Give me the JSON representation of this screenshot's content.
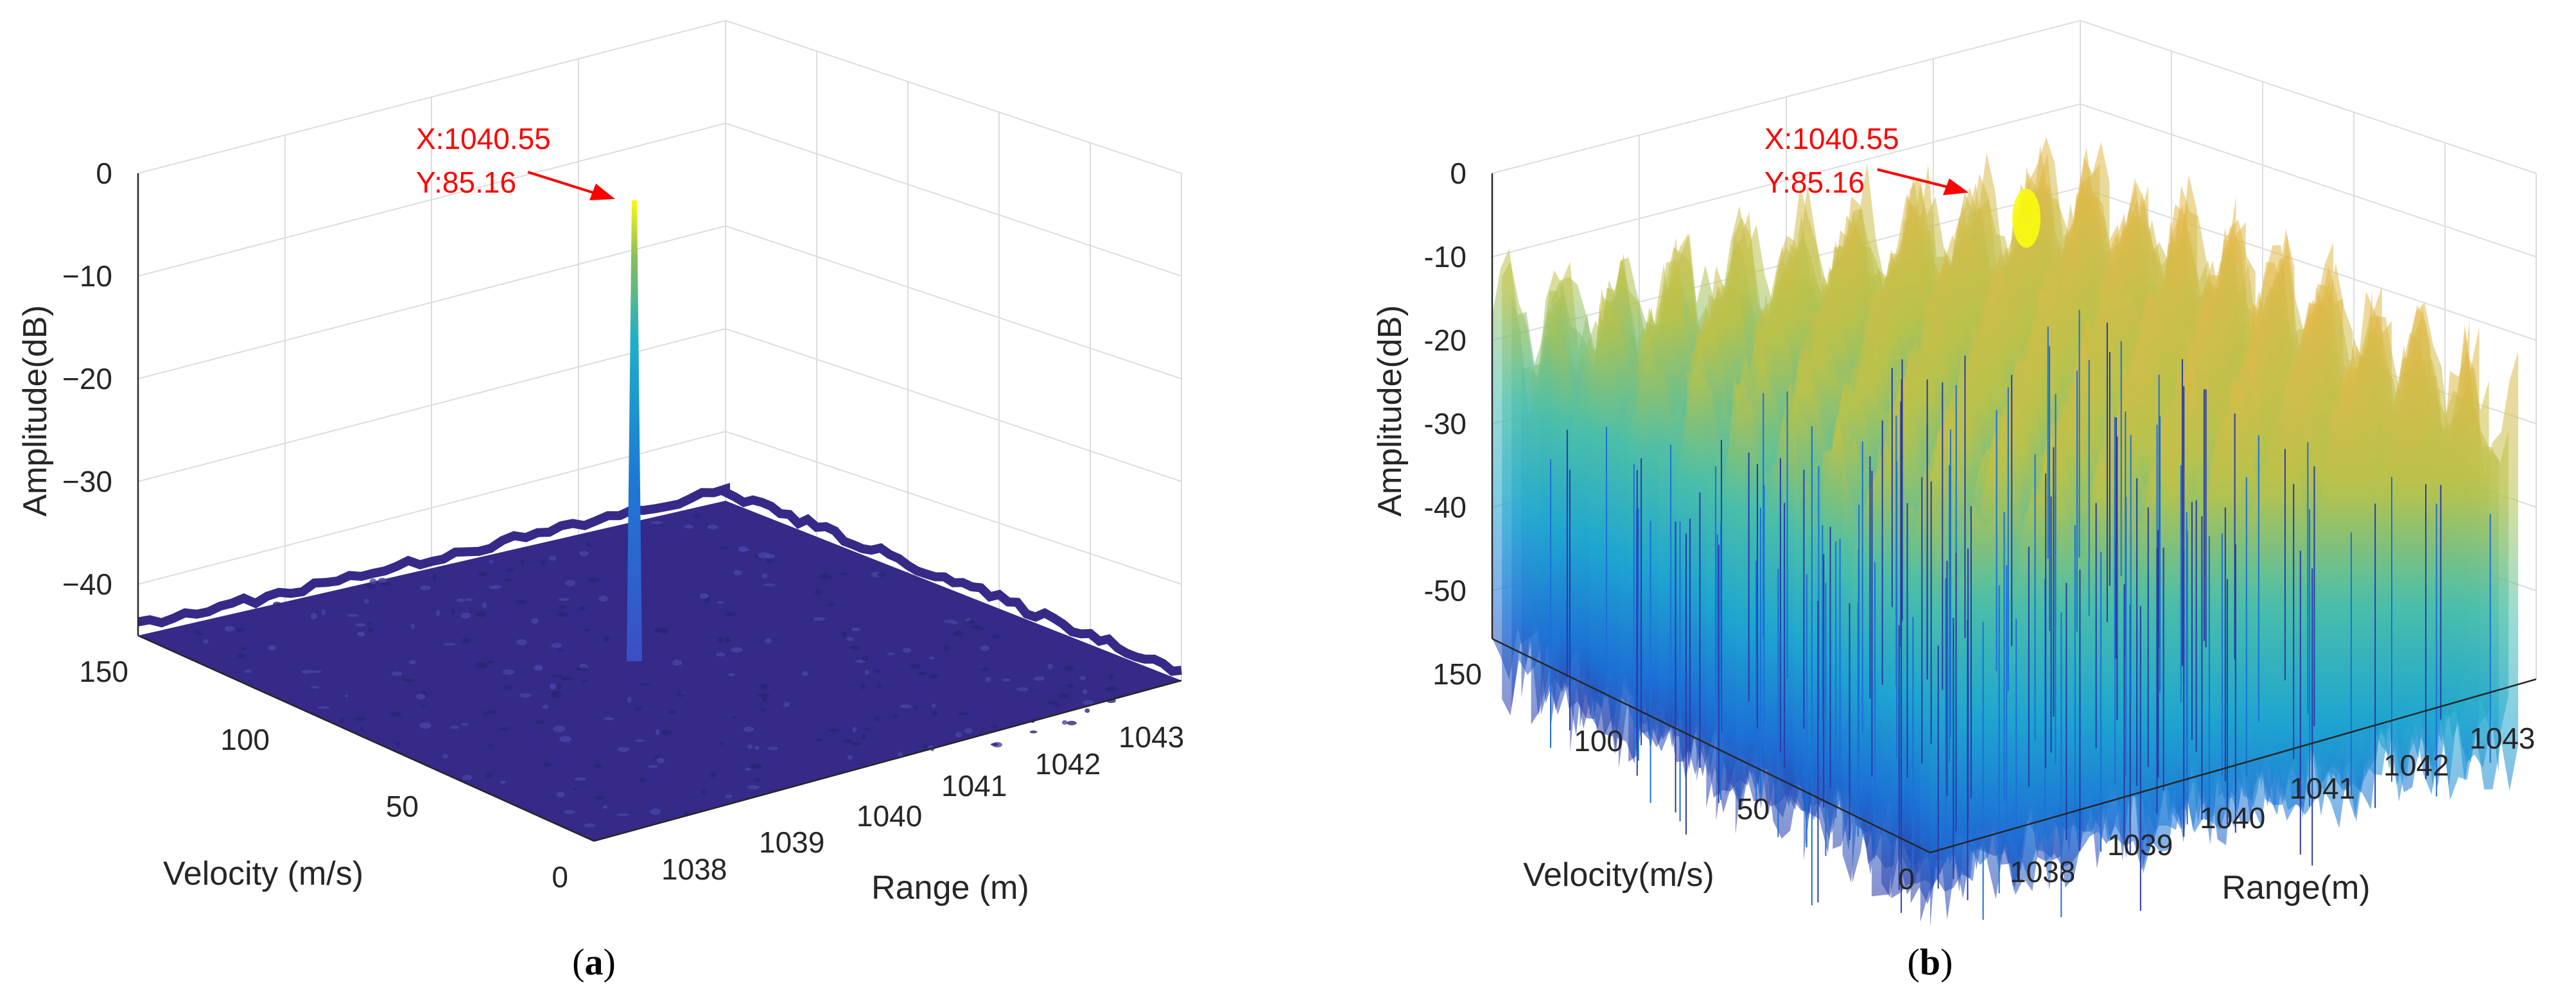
{
  "chart_data": [
    {
      "id": "a",
      "type": "surface3d",
      "caption": "(a)",
      "caption_letter": "a",
      "zlabel": "Amplitude(dB)",
      "xlabel": "Velocity (m/s)",
      "ylabel": "Range (m)",
      "zticks": [
        "0",
        "−10",
        "−20",
        "−30",
        "−40"
      ],
      "zlim": [
        -45,
        0
      ],
      "vel_ticks": [
        "150",
        "100",
        "50",
        "0"
      ],
      "range_ticks": [
        "1038",
        "1039",
        "1040",
        "1041",
        "1042",
        "1043"
      ],
      "annotation": {
        "line1": "X:1040.55",
        "line2": "Y:85.16"
      },
      "peak": {
        "range_m": 1040.55,
        "velocity_ms": 85.16,
        "amplitude_db": 0
      },
      "floor_db": -45
    },
    {
      "id": "b",
      "type": "surface3d",
      "caption": "(b)",
      "caption_letter": "b",
      "zlabel": "Amplitude(dB)",
      "xlabel": "Velocity(m/s)",
      "ylabel": "Range(m)",
      "zticks": [
        "0",
        "-10",
        "-20",
        "-30",
        "-40",
        "-50"
      ],
      "zlim": [
        -55,
        0
      ],
      "vel_ticks": [
        "150",
        "100",
        "50",
        "0"
      ],
      "range_ticks": [
        "1038",
        "1039",
        "1040",
        "1041",
        "1042",
        "1043"
      ],
      "annotation": {
        "line1": "X:1040.55",
        "line2": "Y:85.16"
      },
      "peak": {
        "range_m": 1040.55,
        "velocity_ms": 85.16,
        "amplitude_db": 0
      },
      "sidelobe_range_db": [
        -55,
        -5
      ]
    }
  ],
  "colors": {
    "annotation": "#ff0000",
    "floor": "#352a87",
    "surface_low": "#2c3aa8",
    "surface_mid": "#1fa8c4",
    "surface_high": "#d9b33a",
    "peak": "#f9fb0e"
  }
}
